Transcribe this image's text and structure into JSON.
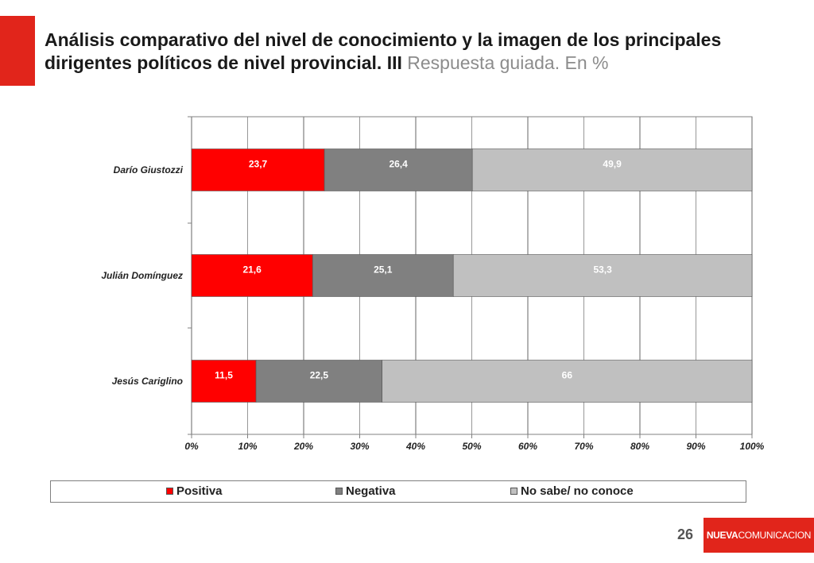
{
  "slide": {
    "title": "Análisis comparativo del nivel de conocimiento y la imagen de los principales dirigentes políticos de nivel provincial. III",
    "subtitle": "Respuesta guiada. En %",
    "page_number": "26",
    "brand_bold": "NUEVA",
    "brand_light": "COMUNICACION",
    "colors": {
      "accent": "#e1251b"
    }
  },
  "chart_data": {
    "type": "bar",
    "orientation": "horizontal",
    "stacked": "percent",
    "categories": [
      "Darío Giustozzi",
      "Julián Domínguez",
      "Jesús Cariglino"
    ],
    "series": [
      {
        "name": "Positiva",
        "color": "#ff0000",
        "values": [
          23.7,
          21.6,
          11.5
        ],
        "labels": [
          "23,7",
          "21,6",
          "11,5"
        ]
      },
      {
        "name": "Negativa",
        "color": "#808080",
        "values": [
          26.4,
          25.1,
          22.5
        ],
        "labels": [
          "26,4",
          "25,1",
          "22,5"
        ]
      },
      {
        "name": "No sabe/ no conoce",
        "color": "#c0c0c0",
        "values": [
          49.9,
          53.3,
          66
        ],
        "labels": [
          "49,9",
          "53,3",
          "66"
        ]
      }
    ],
    "xticks": [
      "0%",
      "10%",
      "20%",
      "30%",
      "40%",
      "50%",
      "60%",
      "70%",
      "80%",
      "90%",
      "100%"
    ],
    "xlim": [
      0,
      100
    ],
    "grid": true,
    "legend_position": "bottom"
  }
}
